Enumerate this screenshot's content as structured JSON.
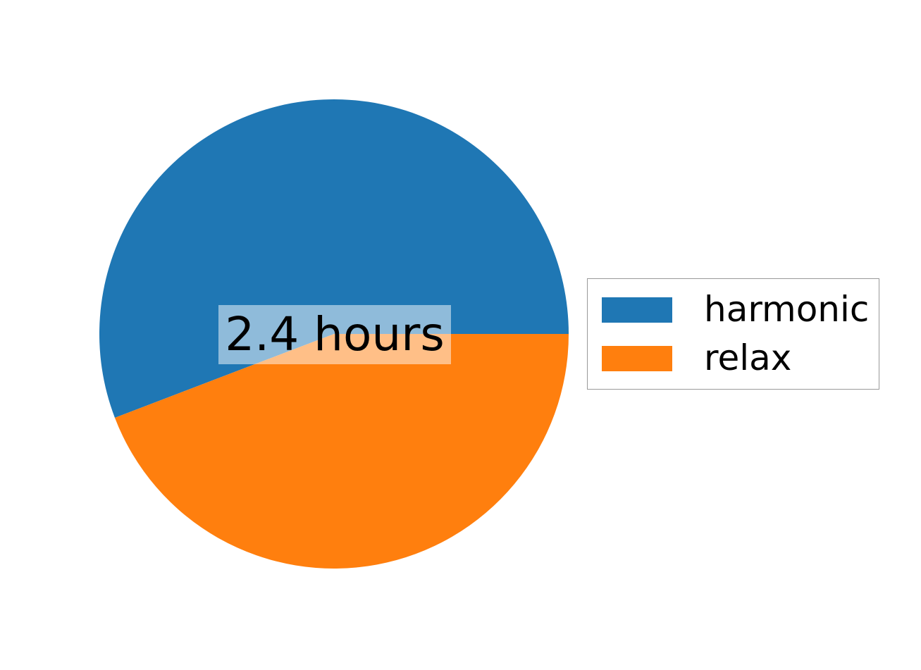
{
  "chart_data": {
    "type": "pie",
    "labels": [
      "harmonic",
      "relax"
    ],
    "values_hours": [
      2.4,
      1.9
    ],
    "percentages": [
      55.8,
      44.2
    ],
    "colors": [
      "#1f77b4",
      "#ff7f0e"
    ],
    "start_angle_deg": 0,
    "counterclockwise": true,
    "title": "",
    "center_label": "2.4 hours",
    "center_label_bg": "rgba(255,255,255,0.5)",
    "legend_position": "center right",
    "legend_border_color": "#999999",
    "background_color": "#ffffff"
  }
}
